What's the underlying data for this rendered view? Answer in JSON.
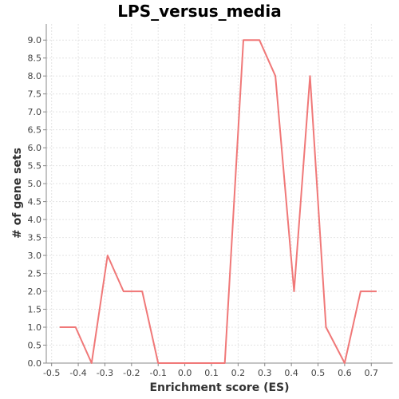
{
  "chart_data": {
    "type": "line",
    "title": "LPS_versus_media",
    "xlabel": "Enrichment score (ES)",
    "ylabel": "# of gene sets",
    "xlim": [
      -0.52,
      0.78
    ],
    "ylim": [
      0,
      9.45
    ],
    "grid": true,
    "x_ticks": [
      -0.5,
      -0.4,
      -0.3,
      -0.2,
      -0.1,
      0.0,
      0.1,
      0.2,
      0.3,
      0.4,
      0.5,
      0.6,
      0.7
    ],
    "x_tick_labels": [
      "-0.5",
      "-0.4",
      "-0.3",
      "-0.2",
      "-0.1",
      "0.0",
      "0.1",
      "0.2",
      "0.3",
      "0.4",
      "0.5",
      "0.6",
      "0.7"
    ],
    "y_ticks": [
      0.0,
      0.5,
      1.0,
      1.5,
      2.0,
      2.5,
      3.0,
      3.5,
      4.0,
      4.5,
      5.0,
      5.5,
      6.0,
      6.5,
      7.0,
      7.5,
      8.0,
      8.5,
      9.0
    ],
    "y_tick_labels": [
      "0.0",
      "0.5",
      "1.0",
      "1.5",
      "2.0",
      "2.5",
      "3.0",
      "3.5",
      "4.0",
      "4.5",
      "5.0",
      "5.5",
      "6.0",
      "6.5",
      "7.0",
      "7.5",
      "8.0",
      "8.5",
      "9.0"
    ],
    "series": [
      {
        "color": "#f07878",
        "x": [
          -0.47,
          -0.41,
          -0.35,
          -0.29,
          -0.23,
          -0.16,
          -0.1,
          -0.04,
          0.03,
          0.09,
          0.15,
          0.22,
          0.28,
          0.34,
          0.41,
          0.47,
          0.53,
          0.6,
          0.66,
          0.72
        ],
        "y": [
          1,
          1,
          0,
          3,
          2,
          2,
          0,
          0,
          0,
          0,
          0,
          9,
          9,
          8,
          2,
          8,
          1,
          0,
          2,
          2
        ]
      }
    ]
  }
}
